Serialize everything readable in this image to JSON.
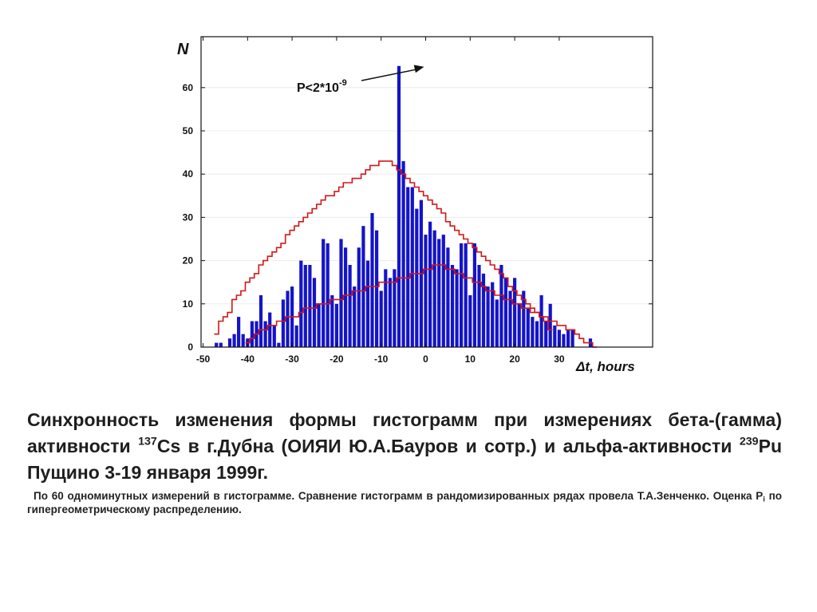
{
  "chart_data": {
    "type": "bar",
    "title": "",
    "ylabel": "N",
    "xlabel": "Δt, hours",
    "xlim": [
      -50,
      50
    ],
    "ylim": [
      0,
      70
    ],
    "x_ticks": [
      -50,
      -40,
      -30,
      -20,
      -10,
      0,
      10,
      20,
      30
    ],
    "y_ticks": [
      0,
      10,
      20,
      30,
      40,
      50,
      60
    ],
    "annotation": {
      "base": "P<2*10",
      "exponent": "-9",
      "points_to_x": 0,
      "points_to_y": 65
    },
    "bin_start": -47,
    "bin_width": 1,
    "series": [
      {
        "color": "#1414c8",
        "values": [
          1,
          1,
          0,
          2,
          3,
          7,
          3,
          2,
          6,
          6,
          12,
          6,
          8,
          5,
          1,
          11,
          13,
          14,
          5,
          20,
          19,
          19,
          16,
          10,
          25,
          24,
          12,
          10,
          25,
          23,
          19,
          14,
          23,
          28,
          20,
          31,
          27,
          13,
          18,
          16,
          18,
          65,
          43,
          37,
          37,
          32,
          34,
          26,
          29,
          27,
          25,
          26,
          23,
          19,
          18,
          24,
          24,
          12,
          24,
          19,
          17,
          14,
          15,
          11,
          19,
          16,
          13,
          16,
          10,
          13,
          9,
          7,
          6,
          12,
          6,
          10,
          5,
          4,
          3,
          4,
          4,
          0,
          0,
          0,
          2
        ]
      },
      {
        "color": "#d01818",
        "values": [
          3,
          6,
          7,
          8,
          11,
          12,
          13,
          15,
          16,
          17,
          19,
          20,
          21,
          22,
          23,
          24,
          26,
          27,
          28,
          29,
          30,
          31,
          32,
          33,
          34,
          35,
          35,
          36,
          37,
          38,
          38,
          39,
          39,
          40,
          41,
          42,
          42,
          43,
          43,
          43,
          42,
          41,
          40,
          39,
          38,
          37,
          36,
          35,
          34,
          33,
          32,
          31,
          29,
          28,
          27,
          26,
          25,
          24,
          23,
          22,
          21,
          20,
          19,
          18,
          17,
          16,
          14,
          13,
          12,
          11,
          10,
          9,
          8,
          7,
          6,
          4
        ]
      },
      {
        "color": "#d01818",
        "values": [
          1,
          2,
          3,
          4,
          4,
          5,
          5,
          6,
          6,
          7,
          7,
          7,
          8,
          9,
          9,
          9,
          10,
          10,
          10,
          11,
          11,
          11,
          12,
          12,
          13,
          13,
          13,
          14,
          14,
          14,
          15,
          15,
          15,
          15,
          16,
          16,
          16,
          17,
          17,
          17,
          18,
          18,
          19,
          19,
          19,
          18,
          18,
          17,
          17,
          16,
          16,
          15,
          15,
          14,
          13,
          13,
          12,
          12,
          11,
          11,
          10,
          10,
          9,
          9,
          8,
          8,
          7,
          7,
          6,
          6,
          5,
          5,
          4,
          4,
          3,
          2,
          1,
          1,
          0
        ]
      }
    ],
    "red_upper_start": -47,
    "red_lower_start": -40
  },
  "caption": {
    "main_1": "Синхронность изменения формы гистограмм при измерениях бета-(гамма) активности ",
    "cs_mass": "137",
    "main_2": "Cs в г.Дубна (ОИЯИ Ю.А.Бауров и сотр.) и альфа-активности ",
    "pu_mass": "239",
    "main_3": "Pu Пущино 3-19 января 1999г.",
    "sub_1": "По 60 одноминутных измерений в гистограмме. Сравнение гистограмм в рандомизированных рядах провела Т.А.Зенченко. Оценка P",
    "sub_index": "i",
    "sub_2": " по гипергеометрическому распределению."
  }
}
